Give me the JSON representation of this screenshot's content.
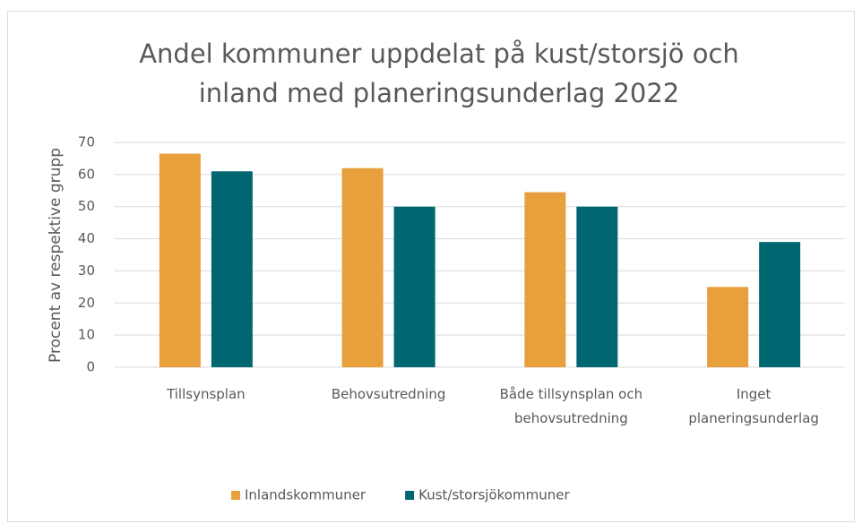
{
  "chart_data": {
    "type": "bar",
    "title": "Andel kommuner uppdelat på kust/storsjö och inland med planeringsunderlag 2022",
    "y_label": "Procent av respektive grupp",
    "categories": [
      "Tillsynsplan",
      "Behovsutredning",
      "Både tillsynsplan och behovsutredning",
      "Inget planeringsunderlag"
    ],
    "series": [
      {
        "name": "Inlandskommuner",
        "color": "#E8A03D",
        "values": [
          66.5,
          62,
          54.5,
          25
        ]
      },
      {
        "name": "Kust/storsjökommuner",
        "color": "#006670",
        "values": [
          61,
          50,
          50,
          39
        ]
      }
    ],
    "ylim": [
      0,
      70
    ],
    "yticks": [
      0,
      10,
      20,
      30,
      40,
      50,
      60,
      70
    ],
    "grid": true,
    "legend": "bottom"
  }
}
